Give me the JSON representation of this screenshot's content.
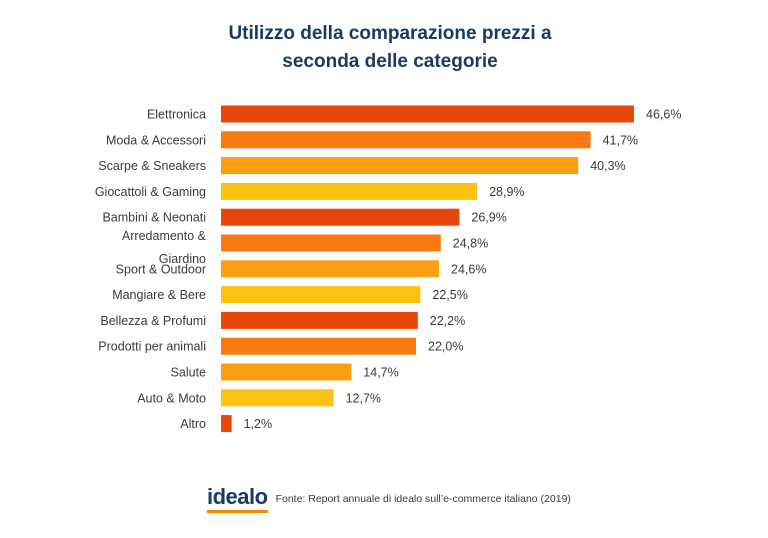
{
  "title_lines": [
    "Utilizzo della comparazione prezzi a",
    "seconda delle categorie"
  ],
  "chart_data": {
    "type": "bar",
    "orientation": "horizontal",
    "title": "Utilizzo della comparazione prezzi a seconda delle categorie",
    "categories": [
      "Elettronica",
      "Moda & Accessori",
      "Scarpe & Sneakers",
      "Giocattoli & Gaming",
      "Bambini & Neonati",
      "Arredamento & Giardino",
      "Sport & Outdoor",
      "Mangiare & Bere",
      "Bellezza & Profumi",
      "Prodotti per animali",
      "Salute",
      "Auto & Moto",
      "Altro"
    ],
    "values": [
      46.6,
      41.7,
      40.3,
      28.9,
      26.9,
      24.8,
      24.6,
      22.5,
      22.2,
      22.0,
      14.7,
      12.7,
      1.2
    ],
    "value_labels": [
      "46,6%",
      "41,7%",
      "40,3%",
      "28,9%",
      "26,9%",
      "24,8%",
      "24,6%",
      "22,5%",
      "22,2%",
      "22,0%",
      "14,7%",
      "12,7%",
      "1,2%"
    ],
    "bar_colors": [
      "#e8460a",
      "#f97a10",
      "#fb9e12",
      "#fcc212",
      "#e8460a",
      "#f97a10",
      "#fb9e12",
      "#fcc212",
      "#e8460a",
      "#f97a10",
      "#fb9e12",
      "#fcc212",
      "#e8460a"
    ],
    "xlim": [
      0,
      46.6
    ],
    "xlabel": "",
    "ylabel": "",
    "grid": false,
    "legend": "none"
  },
  "footer": {
    "logo_text": "idealo",
    "source": "Fonte: Report annuale di idealo sull’e-commerce italiano (2019)"
  },
  "colors": {
    "title": "#183a63",
    "logo": "#1b3a67",
    "logo_underline": "#f28b00"
  }
}
